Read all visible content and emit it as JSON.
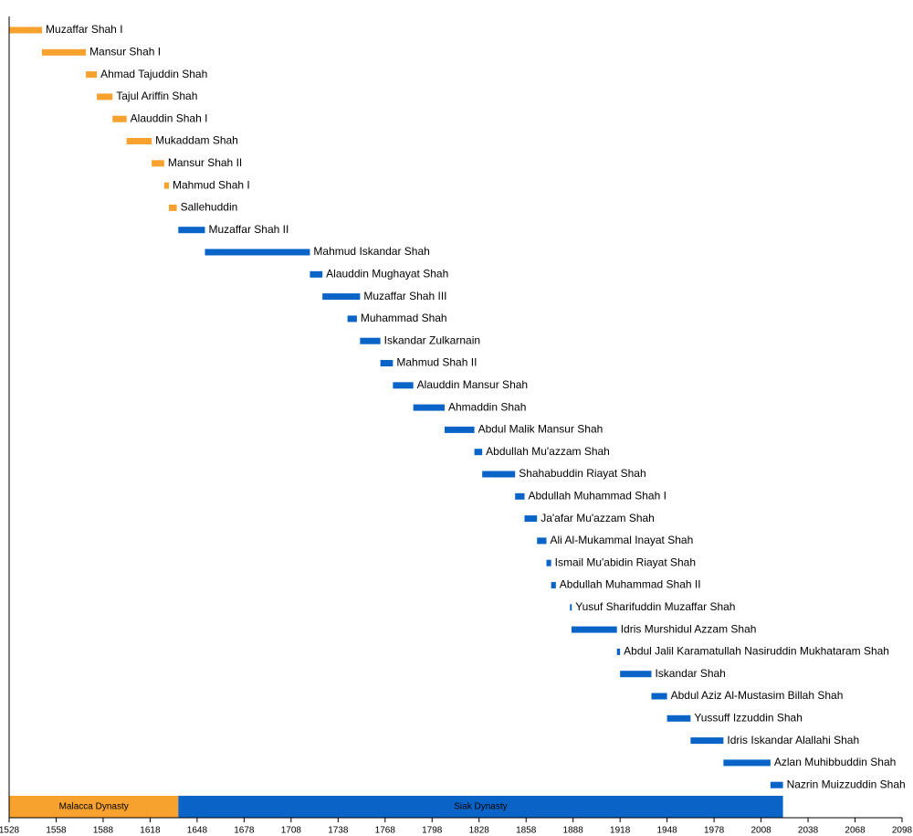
{
  "chart_data": {
    "type": "timeline",
    "xlim": [
      1528,
      2098
    ],
    "xticks": [
      1528,
      1558,
      1588,
      1618,
      1648,
      1678,
      1708,
      1738,
      1768,
      1798,
      1828,
      1858,
      1888,
      1918,
      1948,
      1978,
      2008,
      2038,
      2068,
      2098
    ],
    "dynasties": [
      {
        "name": "Malacca Dynasty",
        "color": "#f7a12e",
        "start": 1528,
        "end": 1636,
        "rulers": [
          {
            "name": "Muzaffar Shah I",
            "start": 1528,
            "end": 1549
          },
          {
            "name": "Mansur Shah I",
            "start": 1549,
            "end": 1577
          },
          {
            "name": "Ahmad Tajuddin Shah",
            "start": 1577,
            "end": 1584
          },
          {
            "name": "Tajul Ariffin Shah",
            "start": 1584,
            "end": 1594
          },
          {
            "name": "Alauddin Shah I",
            "start": 1594,
            "end": 1603
          },
          {
            "name": "Mukaddam Shah",
            "start": 1603,
            "end": 1619
          },
          {
            "name": "Mansur Shah II",
            "start": 1619,
            "end": 1627
          },
          {
            "name": "Mahmud Shah I",
            "start": 1627,
            "end": 1630
          },
          {
            "name": "Sallehuddin",
            "start": 1630,
            "end": 1635
          }
        ]
      },
      {
        "name": "Siak Dynasty",
        "color": "#0a64c8",
        "start": 1636,
        "end": 2022,
        "rulers": [
          {
            "name": "Muzaffar Shah II",
            "start": 1636,
            "end": 1653
          },
          {
            "name": "Mahmud Iskandar Shah",
            "start": 1653,
            "end": 1720
          },
          {
            "name": "Alauddin Mughayat Shah",
            "start": 1720,
            "end": 1728
          },
          {
            "name": "Muzaffar Shah III",
            "start": 1728,
            "end": 1752
          },
          {
            "name": "Muhammad Shah",
            "start": 1744,
            "end": 1750
          },
          {
            "name": "Iskandar Zulkarnain",
            "start": 1752,
            "end": 1765
          },
          {
            "name": "Mahmud Shah II",
            "start": 1765,
            "end": 1773
          },
          {
            "name": "Alauddin Mansur Shah",
            "start": 1773,
            "end": 1786
          },
          {
            "name": "Ahmaddin Shah",
            "start": 1786,
            "end": 1806
          },
          {
            "name": "Abdul Malik Mansur Shah",
            "start": 1806,
            "end": 1825
          },
          {
            "name": "Abdullah Mu'azzam Shah",
            "start": 1825,
            "end": 1830
          },
          {
            "name": "Shahabuddin Riayat Shah",
            "start": 1830,
            "end": 1851
          },
          {
            "name": "Abdullah Muhammad Shah I",
            "start": 1851,
            "end": 1857
          },
          {
            "name": "Ja'afar Mu'azzam Shah",
            "start": 1857,
            "end": 1865
          },
          {
            "name": "Ali Al-Mukammal Inayat Shah",
            "start": 1865,
            "end": 1871
          },
          {
            "name": "Ismail Mu'abidin Riayat Shah",
            "start": 1871,
            "end": 1874
          },
          {
            "name": "Abdullah Muhammad Shah II",
            "start": 1874,
            "end": 1877
          },
          {
            "name": "Yusuf Sharifuddin Muzaffar Shah",
            "start": 1886,
            "end": 1887
          },
          {
            "name": "Idris Murshidul Azzam Shah",
            "start": 1887,
            "end": 1916
          },
          {
            "name": "Abdul Jalil Karamatullah Nasiruddin Mukhataram Shah",
            "start": 1916,
            "end": 1918
          },
          {
            "name": "Iskandar Shah",
            "start": 1918,
            "end": 1938
          },
          {
            "name": "Abdul Aziz Al-Mustasim Billah Shah",
            "start": 1938,
            "end": 1948
          },
          {
            "name": "Yussuff Izzuddin Shah",
            "start": 1948,
            "end": 1963
          },
          {
            "name": "Idris Iskandar Alallahi Shah",
            "start": 1963,
            "end": 1984
          },
          {
            "name": "Azlan Muhibbuddin Shah",
            "start": 1984,
            "end": 2014
          },
          {
            "name": "Nazrin Muizzuddin Shah",
            "start": 2014,
            "end": 2022
          }
        ]
      }
    ]
  }
}
